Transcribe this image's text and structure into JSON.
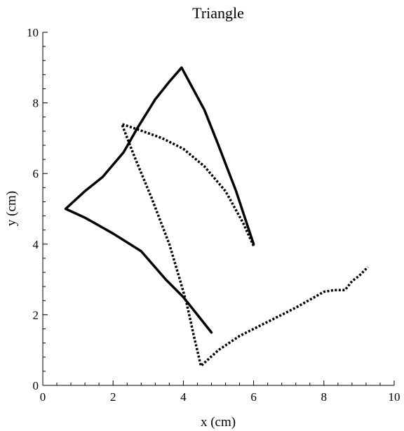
{
  "chart_data": {
    "type": "line",
    "title": "Triangle",
    "xlabel": "x (cm)",
    "ylabel": "y (cm)",
    "xlim": [
      0,
      10
    ],
    "ylim": [
      0,
      10
    ],
    "xticks": [
      "0",
      "2",
      "4",
      "6",
      "8",
      "10"
    ],
    "yticks": [
      "0",
      "2",
      "4",
      "6",
      "8",
      "10"
    ],
    "grid": false,
    "series": [
      {
        "style": "solid",
        "color": "#000000",
        "points": [
          [
            6.0,
            4.0
          ],
          [
            5.5,
            5.5
          ],
          [
            5.0,
            6.8
          ],
          [
            4.6,
            7.8
          ],
          [
            3.95,
            9.0
          ],
          [
            3.6,
            8.6
          ],
          [
            3.2,
            8.1
          ],
          [
            2.7,
            7.3
          ],
          [
            2.3,
            6.6
          ],
          [
            1.7,
            5.9
          ],
          [
            1.2,
            5.5
          ],
          [
            0.65,
            5.0
          ],
          [
            1.2,
            4.75
          ],
          [
            2.0,
            4.3
          ],
          [
            2.8,
            3.8
          ],
          [
            3.5,
            3.0
          ],
          [
            4.0,
            2.5
          ],
          [
            4.4,
            2.0
          ],
          [
            4.8,
            1.5
          ]
        ]
      },
      {
        "style": "dotted",
        "color": "#000000",
        "points": [
          [
            6.0,
            3.95
          ],
          [
            5.7,
            4.6
          ],
          [
            5.2,
            5.5
          ],
          [
            4.6,
            6.2
          ],
          [
            4.0,
            6.7
          ],
          [
            3.4,
            7.0
          ],
          [
            2.7,
            7.25
          ],
          [
            2.25,
            7.4
          ],
          [
            2.6,
            6.5
          ],
          [
            3.1,
            5.3
          ],
          [
            3.6,
            4.0
          ],
          [
            3.9,
            3.0
          ],
          [
            4.1,
            2.3
          ],
          [
            4.3,
            1.4
          ],
          [
            4.5,
            0.55
          ],
          [
            5.0,
            1.0
          ],
          [
            5.6,
            1.4
          ],
          [
            6.4,
            1.8
          ],
          [
            7.2,
            2.2
          ],
          [
            8.0,
            2.65
          ],
          [
            8.3,
            2.7
          ],
          [
            8.6,
            2.7
          ],
          [
            8.8,
            2.95
          ],
          [
            9.0,
            3.1
          ],
          [
            9.25,
            3.35
          ]
        ]
      }
    ]
  }
}
